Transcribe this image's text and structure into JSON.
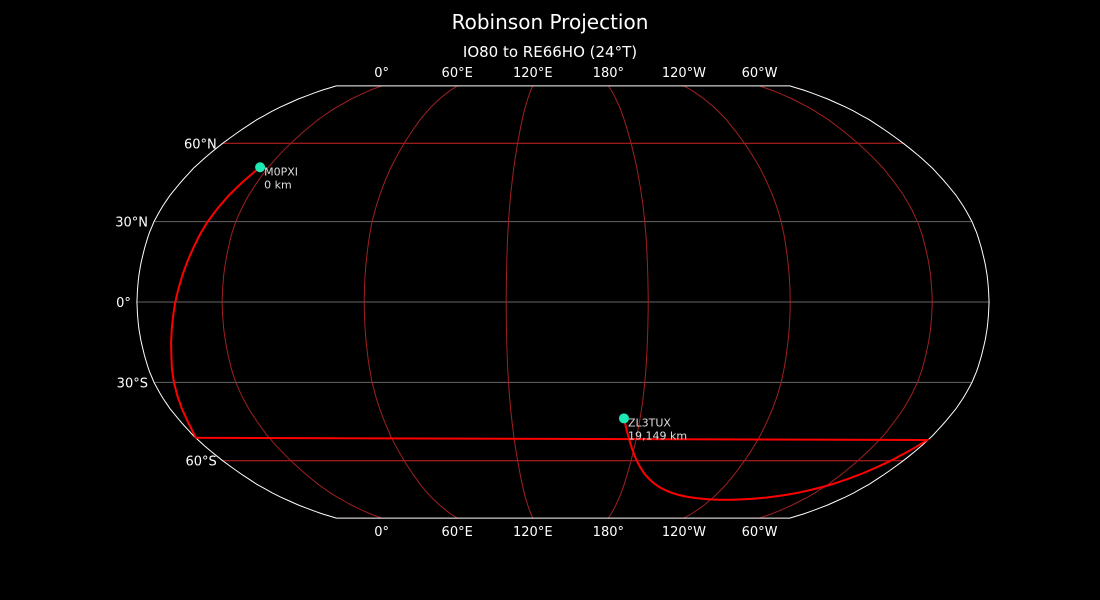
{
  "title": "Robinson Projection",
  "subtitle": "IO80 to RE66HO (24°T)",
  "projection": {
    "type": "Robinson",
    "central_longitude": 144
  },
  "colors": {
    "background": "#000000",
    "coastline": "#888888",
    "path": "#ff0000",
    "marker": "#1de9b6",
    "graticule_major": "#cc2222",
    "meridian": "#a02020",
    "lat_minor": "#666666",
    "outline": "#ffffff"
  },
  "lon_labels": [
    {
      "lon": 0,
      "label": "0°"
    },
    {
      "lon": 60,
      "label": "60°E"
    },
    {
      "lon": 120,
      "label": "120°E"
    },
    {
      "lon": 180,
      "label": "180°"
    },
    {
      "lon": 240,
      "label": "120°W"
    },
    {
      "lon": 300,
      "label": "60°W"
    }
  ],
  "lat_labels": [
    {
      "lat": 60,
      "label": "60°N"
    },
    {
      "lat": 30,
      "label": "30°N"
    },
    {
      "lat": 0,
      "label": "0°"
    },
    {
      "lat": -30,
      "label": "30°S"
    },
    {
      "lat": -60,
      "label": "60°S"
    }
  ],
  "stations": [
    {
      "call": "M0PXI",
      "distance": "0 km",
      "lat": 50.5,
      "lon": -4
    },
    {
      "call": "ZL3TUX",
      "distance": "19,149 km",
      "lat": -43.5,
      "lon": 172.5
    }
  ]
}
